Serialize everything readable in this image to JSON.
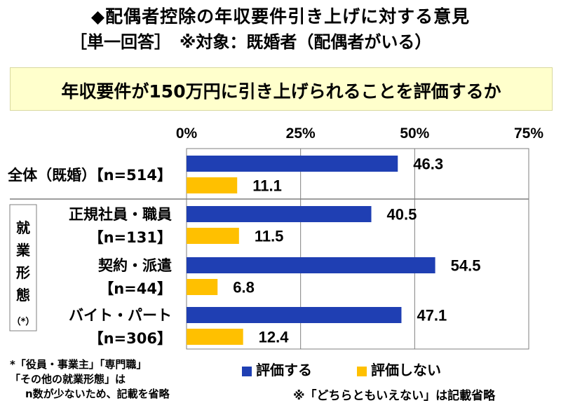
{
  "header": {
    "title_line1": "◆配偶者控除の年収要件引き上げに対する意見",
    "title_line2": "［単一回答］　※対象：既婚者（配偶者がいる）"
  },
  "question": "年収要件が150万円に引き上げられることを評価するか",
  "group_label_chars": [
    "就",
    "業",
    "形",
    "態"
  ],
  "group_label_note": "（*）",
  "chart_data": {
    "type": "bar",
    "orientation": "horizontal",
    "xlim": [
      0,
      75
    ],
    "ticks": [
      "0%",
      "25%",
      "50%",
      "75%"
    ],
    "tick_values": [
      0,
      25,
      50,
      75
    ],
    "categories": [
      {
        "line1": "全体（既婚）【n=514】",
        "line2": ""
      },
      {
        "line1": "正規社員・職員",
        "line2": "【n=131】"
      },
      {
        "line1": "契約・派遣",
        "line2": "【n=44】"
      },
      {
        "line1": "バイト・パート",
        "line2": "【n=306】"
      }
    ],
    "series": [
      {
        "name": "評価する",
        "color": "#1f3fb3",
        "values": [
          46.3,
          40.5,
          54.5,
          47.1
        ],
        "labels": [
          "46.3",
          "40.5",
          "54.5",
          "47.1"
        ]
      },
      {
        "name": "評価しない",
        "color": "#ffc000",
        "values": [
          11.1,
          11.5,
          6.8,
          12.4
        ],
        "labels": [
          "11.1",
          "11.5",
          "6.8",
          "12.4"
        ]
      }
    ],
    "grid": true,
    "legend_position": "bottom"
  },
  "footnote_left": [
    "*「役員・事業主」「専門職」",
    "「その他の就業形態」は",
    "n数が少ないため、記載を省略"
  ],
  "footnote_right": "※「どちらともいえない」は記載省略"
}
